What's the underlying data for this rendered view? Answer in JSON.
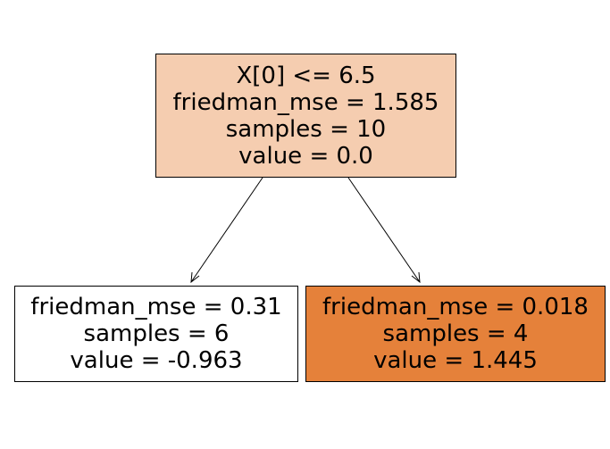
{
  "tree": {
    "root": {
      "lines": [
        "X[0] <= 6.5",
        "friedman_mse = 1.585",
        "samples = 10",
        "value = 0.0"
      ],
      "fill_color": "#f5cdb0"
    },
    "left_leaf": {
      "lines": [
        "friedman_mse = 0.31",
        "samples = 6",
        "value = -0.963"
      ],
      "fill_color": "#ffffff"
    },
    "right_leaf": {
      "lines": [
        "friedman_mse = 0.018",
        "samples = 4",
        "value = 1.445"
      ],
      "fill_color": "#e5813a"
    },
    "edge_color": "#000000"
  }
}
